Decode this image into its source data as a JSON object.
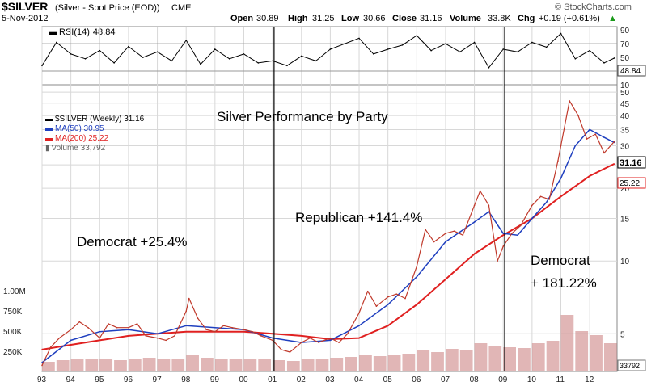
{
  "header": {
    "symbol": "$SILVER",
    "desc": "(Silver - Spot Price (EOD))",
    "exchange": "CME",
    "brand": "© StockCharts.com",
    "date": "5-Nov-2012",
    "open_label": "Open",
    "open": "30.89",
    "high_label": "High",
    "high": "31.25",
    "low_label": "Low",
    "low": "30.66",
    "close_label": "Close",
    "close": "31.16",
    "volume_label": "Volume",
    "volume": "33.8K",
    "chg_label": "Chg",
    "chg": "+0.19 (+0.61%)",
    "chg_arrow": "▲"
  },
  "legend": {
    "price": "$SILVER (Weekly) 31.16",
    "ma50": "MA(50) 30.95",
    "ma200": "MA(200) 25.22",
    "volume": "Volume 33,792"
  },
  "annotations": {
    "title": "Silver Performance by Party",
    "dem1": "Democrat +25.4%",
    "rep": "Republican +141.4%",
    "dem2a": "Democrat",
    "dem2b": "+ 181.22%"
  },
  "badges": {
    "rsi_value": "48.84",
    "price": "31.16",
    "ma200": "25.22",
    "volume": "33792"
  },
  "colors": {
    "price": "#c0392b",
    "ma50": "#1f3fbf",
    "ma200": "#e02020",
    "volume": "#c97a7a",
    "rsi": "#000000",
    "grid": "#d8d8d8"
  },
  "chart_data": {
    "type": "line",
    "indicator": {
      "name": "RSI(14)",
      "value": 48.84,
      "ticks": [
        90,
        70,
        50,
        30,
        10
      ],
      "levels": [
        70,
        30
      ],
      "ylim": [
        10,
        95
      ],
      "x": [
        1993.0,
        1993.5,
        1994.0,
        1994.5,
        1995.0,
        1995.5,
        1996.0,
        1996.5,
        1997.0,
        1997.5,
        1998.0,
        1998.5,
        1999.0,
        1999.5,
        2000.0,
        2000.5,
        2001.0,
        2001.5,
        2002.0,
        2002.5,
        2003.0,
        2003.5,
        2004.0,
        2004.5,
        2005.0,
        2005.5,
        2006.0,
        2006.5,
        2007.0,
        2007.5,
        2008.0,
        2008.5,
        2009.0,
        2009.5,
        2010.0,
        2010.5,
        2011.0,
        2011.5,
        2012.0,
        2012.5,
        2012.85
      ],
      "values": [
        38,
        72,
        55,
        48,
        60,
        42,
        66,
        50,
        58,
        45,
        75,
        40,
        62,
        48,
        55,
        42,
        45,
        38,
        52,
        45,
        62,
        70,
        78,
        55,
        62,
        68,
        82,
        60,
        70,
        58,
        72,
        35,
        62,
        58,
        72,
        65,
        85,
        48,
        60,
        42,
        49
      ]
    },
    "price_axis": {
      "scale": "log",
      "ticks": [
        50,
        45,
        40,
        35,
        30,
        25,
        20,
        15,
        10,
        5
      ],
      "ylim": [
        3.6,
        52
      ]
    },
    "volume_axis": {
      "ticks": [
        "1.00M",
        "750K",
        "500K",
        "250K"
      ],
      "ylim": [
        0,
        1100000
      ]
    },
    "x_ticks": [
      "93",
      "94",
      "95",
      "96",
      "97",
      "98",
      "99",
      "00",
      "01",
      "02",
      "03",
      "04",
      "05",
      "06",
      "07",
      "08",
      "09",
      "10",
      "11",
      "12"
    ],
    "x_tick_values": [
      1993,
      1994,
      1995,
      1996,
      1997,
      1998,
      1999,
      2000,
      2001,
      2002,
      2003,
      2004,
      2005,
      2006,
      2007,
      2008,
      2009,
      2010,
      2011,
      2012
    ],
    "xlim": [
      1993.0,
      2012.95
    ],
    "vertical_lines": [
      2001.05,
      2009.05
    ],
    "series": [
      {
        "name": "$SILVER (Weekly)",
        "x": [
          1993.0,
          1993.3,
          1993.6,
          1994.0,
          1994.3,
          1994.6,
          1995.0,
          1995.3,
          1995.6,
          1996.0,
          1996.3,
          1996.6,
          1997.0,
          1997.3,
          1997.6,
          1998.0,
          1998.1,
          1998.4,
          1998.7,
          1999.0,
          1999.3,
          1999.6,
          2000.0,
          2000.3,
          2000.6,
          2001.0,
          2001.3,
          2001.6,
          2002.0,
          2002.3,
          2002.6,
          2003.0,
          2003.3,
          2003.6,
          2004.0,
          2004.3,
          2004.6,
          2005.0,
          2005.3,
          2005.6,
          2006.0,
          2006.3,
          2006.6,
          2007.0,
          2007.3,
          2007.6,
          2008.0,
          2008.2,
          2008.5,
          2008.8,
          2009.0,
          2009.3,
          2009.6,
          2010.0,
          2010.3,
          2010.6,
          2010.9,
          2011.0,
          2011.3,
          2011.6,
          2011.9,
          2012.2,
          2012.5,
          2012.85
        ],
        "values": [
          3.7,
          4.4,
          4.8,
          5.2,
          5.6,
          5.3,
          4.8,
          5.5,
          5.3,
          5.3,
          5.5,
          4.9,
          4.8,
          4.7,
          4.9,
          6.2,
          7.0,
          5.8,
          5.2,
          5.1,
          5.4,
          5.3,
          5.2,
          5.1,
          4.9,
          4.7,
          4.3,
          4.2,
          4.6,
          4.8,
          4.6,
          4.8,
          4.6,
          5.0,
          6.1,
          7.5,
          6.5,
          7.1,
          7.3,
          7.0,
          9.5,
          13.5,
          12.0,
          13.0,
          13.3,
          12.8,
          17.0,
          19.5,
          17.0,
          10.0,
          11.5,
          13.0,
          14.0,
          17.0,
          18.5,
          18.0,
          26.0,
          30.0,
          46.0,
          40.0,
          32.0,
          33.5,
          28.0,
          31.16
        ]
      },
      {
        "name": "MA(50)",
        "x": [
          1993.0,
          1994.0,
          1995.0,
          1996.0,
          1997.0,
          1998.0,
          1999.0,
          2000.0,
          2001.0,
          2002.0,
          2003.0,
          2004.0,
          2005.0,
          2006.0,
          2007.0,
          2008.0,
          2008.5,
          2009.0,
          2009.5,
          2010.0,
          2010.5,
          2011.0,
          2011.5,
          2012.0,
          2012.5,
          2012.85
        ],
        "values": [
          3.8,
          4.7,
          5.1,
          5.2,
          5.0,
          5.4,
          5.3,
          5.2,
          4.8,
          4.6,
          4.7,
          5.4,
          6.6,
          8.6,
          12.0,
          14.5,
          16.0,
          13.0,
          12.8,
          15.0,
          17.5,
          22.0,
          30.0,
          35.0,
          32.5,
          30.95
        ]
      },
      {
        "name": "MA(200)",
        "x": [
          1993.0,
          1994.0,
          1995.0,
          1996.0,
          1997.0,
          1998.0,
          1999.0,
          2000.0,
          2001.0,
          2002.0,
          2003.0,
          2004.0,
          2005.0,
          2006.0,
          2007.0,
          2008.0,
          2009.0,
          2010.0,
          2011.0,
          2012.0,
          2012.85
        ],
        "values": [
          4.3,
          4.5,
          4.7,
          4.9,
          5.0,
          5.1,
          5.1,
          5.1,
          5.0,
          4.9,
          4.75,
          4.8,
          5.4,
          6.6,
          8.4,
          10.7,
          12.8,
          15.0,
          18.5,
          22.5,
          25.22
        ]
      }
    ],
    "volume_series": {
      "x": [
        1993.0,
        1993.5,
        1994.0,
        1994.5,
        1995.0,
        1995.5,
        1996.0,
        1996.5,
        1997.0,
        1997.5,
        1998.0,
        1998.5,
        1999.0,
        1999.5,
        2000.0,
        2000.5,
        2001.0,
        2001.5,
        2002.0,
        2002.5,
        2003.0,
        2003.5,
        2004.0,
        2004.5,
        2005.0,
        2005.5,
        2006.0,
        2006.5,
        2007.0,
        2007.5,
        2008.0,
        2008.5,
        2009.0,
        2009.5,
        2010.0,
        2010.5,
        2011.0,
        2011.5,
        2012.0,
        2012.5
      ],
      "values": [
        120000,
        140000,
        150000,
        160000,
        150000,
        140000,
        160000,
        170000,
        150000,
        160000,
        200000,
        170000,
        160000,
        150000,
        160000,
        150000,
        140000,
        130000,
        160000,
        150000,
        170000,
        180000,
        200000,
        190000,
        210000,
        220000,
        260000,
        240000,
        280000,
        260000,
        350000,
        320000,
        300000,
        290000,
        350000,
        380000,
        700000,
        500000,
        450000,
        350000
      ]
    }
  }
}
